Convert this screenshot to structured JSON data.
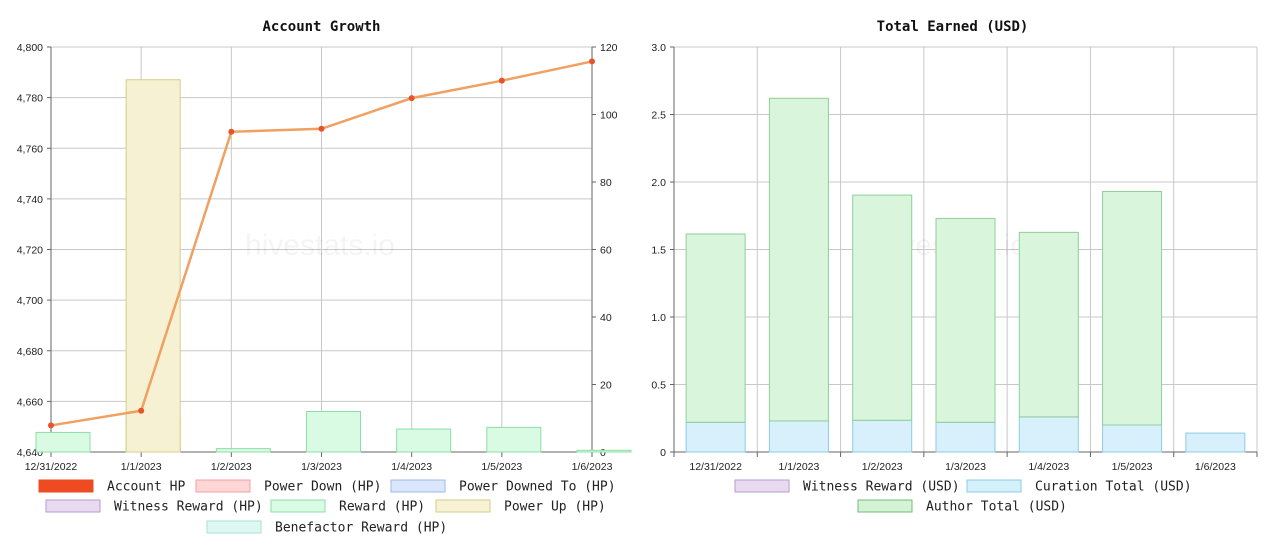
{
  "watermark": "hivestats.io",
  "chart_data": [
    {
      "id": "account-growth",
      "type": "bar",
      "title": "Account Growth",
      "categories": [
        "12/31/2022",
        "1/1/2023",
        "1/2/2023",
        "1/3/2023",
        "1/4/2023",
        "1/5/2023",
        "1/6/2023"
      ],
      "ylim_left": [
        4640,
        4800
      ],
      "yticks_left": [
        4640,
        4660,
        4680,
        4700,
        4720,
        4740,
        4760,
        4780,
        4800
      ],
      "ytick_labels_left": [
        "4,640",
        "4,660",
        "4,680",
        "4,700",
        "4,720",
        "4,740",
        "4,760",
        "4,780",
        "4,800"
      ],
      "ylim_right": [
        0,
        120
      ],
      "yticks_right": [
        0,
        20,
        40,
        60,
        80,
        100,
        120
      ],
      "grid": true,
      "legend_position": "bottom",
      "series": [
        {
          "name": "Account HP",
          "kind": "line",
          "axis": "left",
          "color": "#f0a060",
          "marker_color": "#e8542a",
          "legend_fill": "#ee4b22",
          "legend_stroke": "#ee4b22",
          "values": [
            4650.5,
            4656.3,
            4766.5,
            4767.7,
            4779.8,
            4786.7,
            4794.3
          ]
        },
        {
          "name": "Power Down (HP)",
          "kind": "bar",
          "axis": "right",
          "legend_fill": "#ffd6d6",
          "legend_stroke": "#f0a0a0",
          "values": [
            0,
            0,
            0,
            0,
            0,
            0,
            0
          ]
        },
        {
          "name": "Power Downed To (HP)",
          "kind": "bar",
          "axis": "right",
          "legend_fill": "#dae6fb",
          "legend_stroke": "#9fb9e6",
          "values": [
            0,
            0,
            0,
            0,
            0,
            0,
            0
          ]
        },
        {
          "name": "Witness Reward (HP)",
          "kind": "bar",
          "axis": "right",
          "legend_fill": "#e8daf1",
          "legend_stroke": "#b99bcf",
          "values": [
            0,
            0,
            0,
            0,
            0,
            0,
            0
          ]
        },
        {
          "name": "Reward (HP)",
          "kind": "bar",
          "axis": "right",
          "fill": "#d9fbe3",
          "stroke": "#8edca6",
          "legend_fill": "#d9fbe3",
          "legend_stroke": "#8edca6",
          "values": [
            5.8,
            9.8,
            1.0,
            12.0,
            6.8,
            7.3,
            0.5
          ]
        },
        {
          "name": "Power Up (HP)",
          "kind": "bar",
          "axis": "right",
          "fill": "#f5f1d2",
          "stroke": "#d6cd8a",
          "legend_fill": "#f7f2d4",
          "legend_stroke": "#d6cd8a",
          "values": [
            0,
            110.3,
            0,
            0,
            0,
            0,
            0
          ]
        },
        {
          "name": "Benefactor Reward (HP)",
          "kind": "bar",
          "axis": "right",
          "legend_fill": "#ddf7f2",
          "legend_stroke": "#a8e2d6",
          "values": [
            0,
            0,
            0,
            0,
            0,
            0,
            0
          ]
        }
      ]
    },
    {
      "id": "total-earned",
      "type": "bar",
      "stacked": true,
      "title": "Total Earned (USD)",
      "categories": [
        "12/31/2022",
        "1/1/2023",
        "1/2/2023",
        "1/3/2023",
        "1/4/2023",
        "1/5/2023",
        "1/6/2023"
      ],
      "ylim": [
        0,
        3.0
      ],
      "yticks": [
        0,
        0.5,
        1.0,
        1.5,
        2.0,
        2.5,
        3.0
      ],
      "ytick_labels": [
        "0",
        "0.5",
        "1.0",
        "1.5",
        "2.0",
        "2.5",
        "3.0"
      ],
      "grid": true,
      "legend_position": "bottom",
      "series": [
        {
          "name": "Witness Reward (USD)",
          "legend_fill": "#e8daf1",
          "legend_stroke": "#b99bcf",
          "values": [
            0,
            0,
            0,
            0,
            0,
            0,
            0
          ]
        },
        {
          "name": "Curation Total (USD)",
          "fill": "#d8f0fb",
          "stroke": "#8ccbe6",
          "legend_fill": "#d3f0fb",
          "legend_stroke": "#8ccbe6",
          "values": [
            0.22,
            0.23,
            0.235,
            0.22,
            0.26,
            0.2,
            0.14
          ]
        },
        {
          "name": "Author Total (USD)",
          "fill": "#d9f5dc",
          "stroke": "#8fcf99",
          "legend_fill": "#d4f2d4",
          "legend_stroke": "#6fbf7a",
          "values": [
            1.395,
            2.39,
            1.668,
            1.51,
            1.367,
            1.73,
            0
          ]
        }
      ]
    }
  ]
}
